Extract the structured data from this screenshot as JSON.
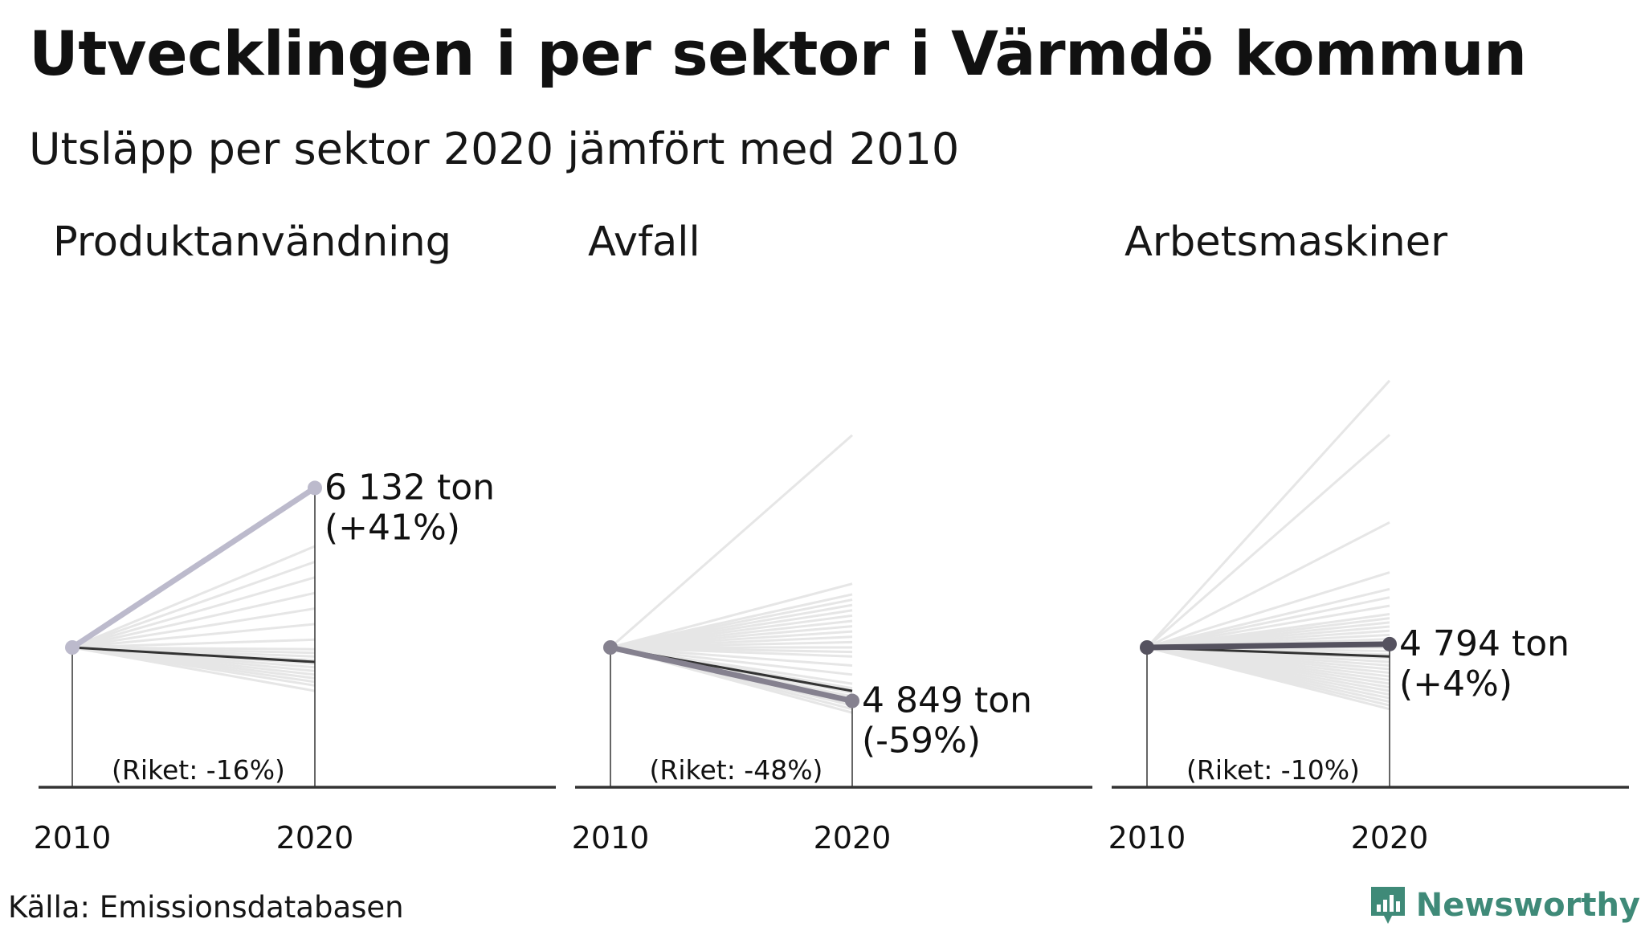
{
  "header": {
    "title": "Utvecklingen i per sektor i Värmdö kommun",
    "subtitle": "Utsläpp per sektor 2020 jämfört med 2010"
  },
  "footer": {
    "source": "Källa: Emissionsdatabasen",
    "brand": "Newsworthy",
    "brand_icon": "newsworthy-logo-icon"
  },
  "colors": {
    "background_lines": "#e6e6e6",
    "riket_line": "#333333",
    "axis": "#333333"
  },
  "chart_data": [
    {
      "type": "line",
      "title": "Produktanvändning",
      "x": [
        "2010",
        "2020"
      ],
      "ylim": [
        -110,
        90
      ],
      "highlight": {
        "change_pct": 41,
        "value_label": "6 132 ton",
        "change_label": "(+41%)",
        "color": "#bcbacc"
      },
      "riket": {
        "change_pct": -16,
        "label": "(Riket: -16%)"
      },
      "background_change_pct": [
        -48,
        -42,
        -38,
        -34,
        -30,
        -26,
        -22,
        -18,
        -14,
        -10,
        -6,
        -2,
        2,
        6,
        10,
        14,
        18,
        22,
        26
      ]
    },
    {
      "type": "line",
      "title": "Avfall",
      "x": [
        "2010",
        "2020"
      ],
      "ylim": [
        -110,
        330
      ],
      "highlight": {
        "change_pct": -59,
        "value_label": "4 849 ton",
        "change_label": "(-59%)",
        "color": "#85818f"
      },
      "riket": {
        "change_pct": -48,
        "label": "(Riket: -48%)"
      },
      "background_change_pct": [
        -72,
        -68,
        -64,
        -62,
        -60,
        -57,
        -54,
        -50,
        -45,
        -40,
        -30,
        -20,
        -10,
        -5,
        0,
        5,
        10,
        15,
        20,
        25,
        30,
        35,
        40,
        45,
        50,
        60,
        200
      ]
    },
    {
      "type": "line",
      "title": "Arbetsmaskiner",
      "x": [
        "2010",
        "2020"
      ],
      "ylim": [
        -110,
        420
      ],
      "highlight": {
        "change_pct": 4,
        "value_label": "4 794 ton",
        "change_label": "(+4%)",
        "color": "#55525f"
      },
      "riket": {
        "change_pct": -10,
        "label": "(Riket: -10%)"
      },
      "background_change_pct": [
        -68,
        -64,
        -60,
        -56,
        -52,
        -48,
        -44,
        -40,
        -36,
        -32,
        -28,
        -24,
        -20,
        -16,
        -12,
        -8,
        -4,
        0,
        5,
        10,
        15,
        20,
        25,
        30,
        35,
        40,
        50,
        60,
        70,
        90,
        150,
        255,
        320
      ]
    }
  ]
}
